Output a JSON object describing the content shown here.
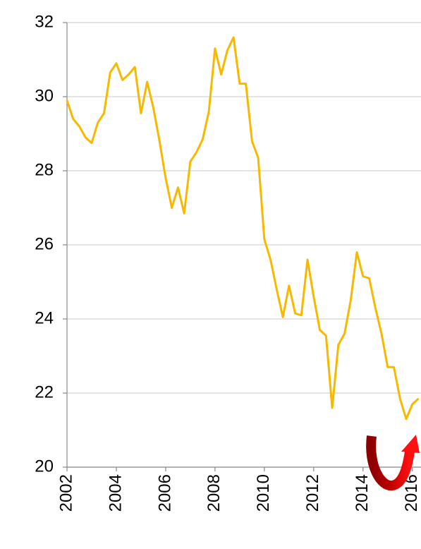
{
  "chart_data": {
    "type": "line",
    "x": [
      2002,
      2002.25,
      2002.5,
      2002.75,
      2003,
      2003.25,
      2003.5,
      2003.75,
      2004,
      2004.25,
      2004.5,
      2004.75,
      2005,
      2005.25,
      2005.5,
      2005.75,
      2006,
      2006.25,
      2006.5,
      2006.75,
      2007,
      2007.25,
      2007.5,
      2007.75,
      2008,
      2008.25,
      2008.5,
      2008.75,
      2009,
      2009.25,
      2009.5,
      2009.75,
      2010,
      2010.25,
      2010.5,
      2010.75,
      2011,
      2011.25,
      2011.5,
      2011.75,
      2012,
      2012.25,
      2012.5,
      2012.75,
      2013,
      2013.25,
      2013.5,
      2013.75,
      2014,
      2014.25,
      2014.5,
      2014.75,
      2015,
      2015.25,
      2015.5,
      2015.75,
      2016,
      2016.25
    ],
    "series": [
      {
        "color": "#f7b900",
        "values": [
          29.9,
          29.4,
          29.2,
          28.9,
          28.75,
          29.3,
          29.55,
          30.65,
          30.9,
          30.45,
          30.6,
          30.8,
          29.55,
          30.4,
          29.7,
          28.8,
          27.8,
          27.0,
          27.55,
          26.85,
          28.25,
          28.5,
          28.85,
          29.6,
          31.3,
          30.6,
          31.25,
          31.6,
          30.35,
          30.35,
          28.8,
          28.35,
          26.15,
          25.6,
          24.8,
          24.05,
          24.9,
          24.15,
          24.1,
          25.6,
          24.6,
          23.7,
          23.55,
          21.6,
          23.3,
          23.6,
          24.5,
          25.8,
          25.15,
          25.1,
          24.3,
          23.6,
          22.7,
          22.7,
          21.85,
          21.3,
          21.7,
          21.85
        ]
      }
    ],
    "xlim": [
      2002,
      2016.35
    ],
    "xticks": [
      2002,
      2004,
      2006,
      2008,
      2010,
      2012,
      2014,
      2016
    ],
    "ylim": [
      20,
      32
    ],
    "yticks": [
      20,
      22,
      24,
      26,
      28,
      30,
      32
    ],
    "grid": true
  }
}
